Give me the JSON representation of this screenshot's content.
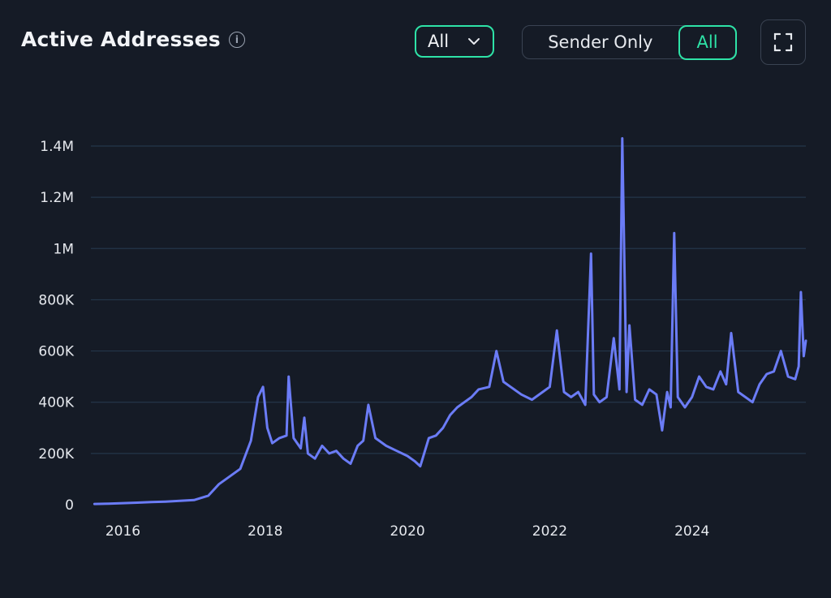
{
  "header": {
    "title": "Active Addresses",
    "info_icon": "info-icon"
  },
  "filters": {
    "dropdown_value": "All",
    "segment_options": [
      "Sender Only",
      "All"
    ],
    "segment_selected": "All"
  },
  "toolbar": {
    "fullscreen_icon": "fullscreen-icon"
  },
  "colors": {
    "background": "#151b26",
    "accent": "#2ee3a7",
    "series": "#6b7cf6",
    "grid": "#24364a",
    "text": "#f2f4f7"
  },
  "chart_data": {
    "type": "line",
    "title": "Active Addresses",
    "xlabel": "",
    "ylabel": "",
    "xlim": [
      2015.55,
      2025.6
    ],
    "ylim": [
      0,
      1400000
    ],
    "x_ticks": [
      2016,
      2018,
      2020,
      2022,
      2024
    ],
    "y_ticks": [
      0,
      200000,
      400000,
      600000,
      800000,
      1000000,
      1200000,
      1400000
    ],
    "y_tick_labels": [
      "0",
      "200K",
      "400K",
      "600K",
      "800K",
      "1M",
      "1.2M",
      "1.4M"
    ],
    "grid": "horizontal",
    "legend": "none",
    "series": [
      {
        "x": [
          2015.6,
          2015.8,
          2016.0,
          2016.2,
          2016.4,
          2016.6,
          2016.8,
          2017.0,
          2017.2,
          2017.35,
          2017.5,
          2017.65,
          2017.8,
          2017.9,
          2017.97,
          2018.03,
          2018.1,
          2018.2,
          2018.3,
          2018.33,
          2018.4,
          2018.5,
          2018.55,
          2018.6,
          2018.7,
          2018.8,
          2018.9,
          2019.0,
          2019.1,
          2019.2,
          2019.3,
          2019.38,
          2019.45,
          2019.55,
          2019.7,
          2019.85,
          2020.0,
          2020.1,
          2020.18,
          2020.3,
          2020.4,
          2020.5,
          2020.6,
          2020.7,
          2020.8,
          2020.9,
          2021.0,
          2021.15,
          2021.25,
          2021.35,
          2021.45,
          2021.6,
          2021.75,
          2021.9,
          2022.0,
          2022.1,
          2022.2,
          2022.3,
          2022.4,
          2022.5,
          2022.58,
          2022.62,
          2022.7,
          2022.8,
          2022.9,
          2022.98,
          2023.02,
          2023.08,
          2023.12,
          2023.2,
          2023.3,
          2023.4,
          2023.5,
          2023.58,
          2023.65,
          2023.7,
          2023.75,
          2023.8,
          2023.9,
          2024.0,
          2024.1,
          2024.2,
          2024.3,
          2024.4,
          2024.48,
          2024.55,
          2024.65,
          2024.75,
          2024.85,
          2024.95,
          2025.05,
          2025.15,
          2025.25,
          2025.35,
          2025.45,
          2025.5,
          2025.53,
          2025.57,
          2025.6
        ],
        "values": [
          3000,
          4000,
          6000,
          8000,
          10000,
          12000,
          15000,
          18000,
          35000,
          80000,
          110000,
          140000,
          250000,
          420000,
          460000,
          300000,
          240000,
          260000,
          270000,
          500000,
          260000,
          220000,
          340000,
          200000,
          180000,
          230000,
          200000,
          210000,
          180000,
          160000,
          230000,
          250000,
          390000,
          260000,
          230000,
          210000,
          190000,
          170000,
          150000,
          260000,
          270000,
          300000,
          350000,
          380000,
          400000,
          420000,
          450000,
          460000,
          600000,
          480000,
          460000,
          430000,
          410000,
          440000,
          460000,
          680000,
          440000,
          420000,
          440000,
          390000,
          980000,
          430000,
          400000,
          420000,
          650000,
          450000,
          1430000,
          440000,
          700000,
          410000,
          390000,
          450000,
          430000,
          290000,
          440000,
          380000,
          1060000,
          420000,
          380000,
          420000,
          500000,
          460000,
          450000,
          520000,
          470000,
          670000,
          440000,
          420000,
          400000,
          470000,
          510000,
          520000,
          600000,
          500000,
          490000,
          540000,
          830000,
          580000,
          640000
        ]
      }
    ]
  }
}
